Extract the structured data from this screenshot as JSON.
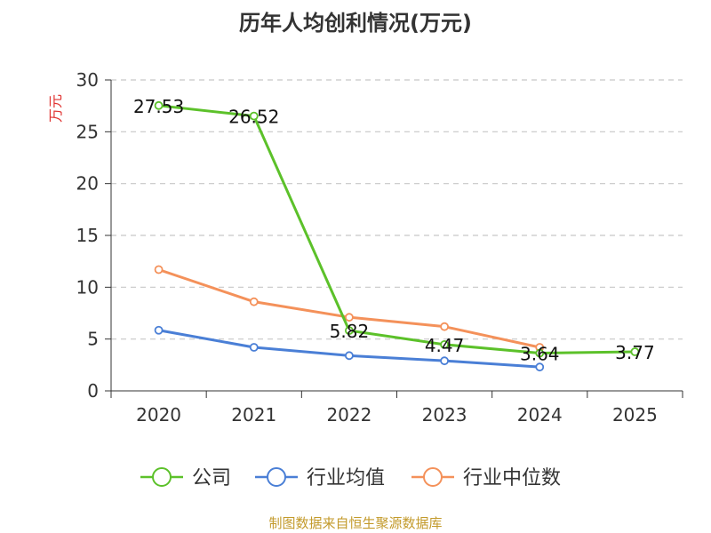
{
  "chart_data": {
    "type": "line",
    "title": "历年人均创利情况(万元)",
    "ylabel": "万元",
    "xlabel": "",
    "ylim": [
      0,
      30
    ],
    "yticks": [
      0,
      5,
      10,
      15,
      20,
      25,
      30
    ],
    "categories": [
      "2020",
      "2021",
      "2022",
      "2023",
      "2024",
      "2025"
    ],
    "series": [
      {
        "name": "公司",
        "color": "#5cc12a",
        "values": [
          27.53,
          26.52,
          5.82,
          4.47,
          3.64,
          3.77
        ],
        "labels": [
          "27.53",
          "26.52",
          "5.82",
          "4.47",
          "3.64",
          "3.77"
        ]
      },
      {
        "name": "行业均值",
        "color": "#4a7fd6",
        "values": [
          5.85,
          4.2,
          3.4,
          2.9,
          2.3,
          null
        ]
      },
      {
        "name": "行业中位数",
        "color": "#f4915a",
        "values": [
          11.7,
          8.6,
          7.1,
          6.2,
          4.2,
          null
        ]
      }
    ],
    "grid": true,
    "legend": "bottom-center"
  },
  "footer": {
    "source": "制图数据来自恒生聚源数据库"
  }
}
